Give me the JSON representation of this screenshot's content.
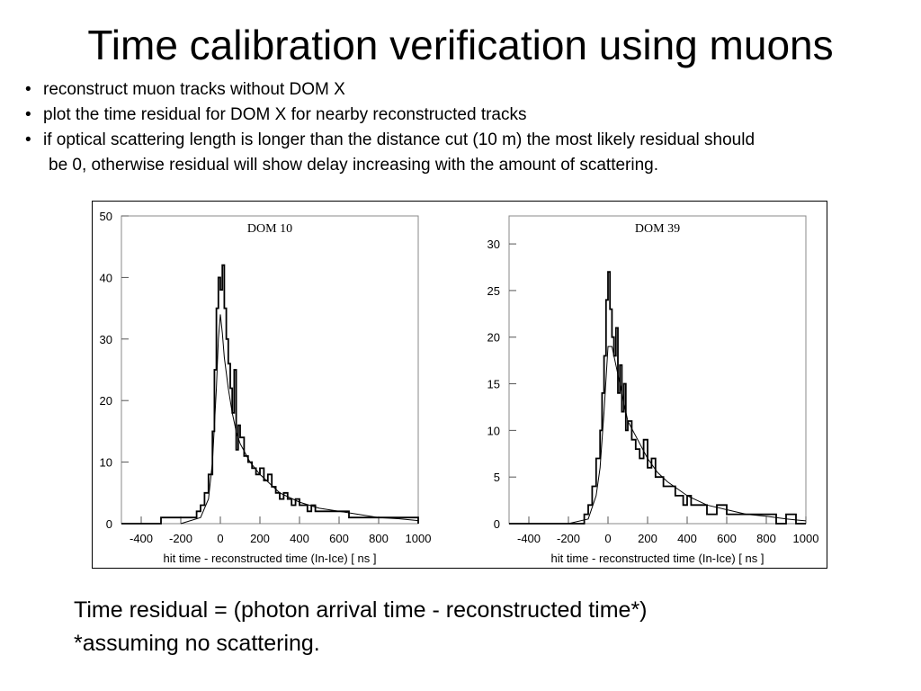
{
  "slide": {
    "title": "Time calibration verification using muons",
    "bullets": [
      "reconstruct muon tracks without DOM X",
      "plot the time residual for DOM X for nearby reconstructed tracks",
      "if optical scattering length is longer than the distance cut (10 m) the most likely residual should",
      "be 0, otherwise residual will show delay increasing with the amount of scattering."
    ],
    "bullet_glyph": "•",
    "footer": [
      "Time residual = (photon arrival time - reconstructed time*)",
      "*assuming no scattering."
    ]
  },
  "chart_data": [
    {
      "type": "line",
      "title": "DOM 10",
      "xlabel": "hit time - reconstructed time (In-Ice) [ ns ]",
      "ylabel": "",
      "xlim": [
        -500,
        1000
      ],
      "ylim": [
        0,
        50
      ],
      "xticks": [
        -400,
        -200,
        0,
        200,
        400,
        600,
        800,
        1000
      ],
      "yticks": [
        0,
        10,
        20,
        30,
        40,
        50
      ],
      "grid": false,
      "series": [
        {
          "style": "histogram",
          "x": [
            -500,
            -400,
            -300,
            -200,
            -150,
            -120,
            -100,
            -80,
            -60,
            -40,
            -30,
            -20,
            -10,
            0,
            10,
            20,
            30,
            40,
            50,
            60,
            70,
            80,
            90,
            100,
            120,
            140,
            160,
            180,
            200,
            220,
            240,
            260,
            280,
            300,
            320,
            340,
            360,
            380,
            400,
            420,
            440,
            460,
            480,
            500,
            550,
            600,
            650,
            700,
            750,
            800,
            850,
            900,
            950,
            1000
          ],
          "y": [
            0,
            0,
            1,
            1,
            1,
            2,
            3,
            5,
            8,
            15,
            25,
            35,
            40,
            38,
            42,
            35,
            30,
            26,
            22,
            18,
            25,
            12,
            16,
            14,
            11,
            10,
            9,
            8,
            9,
            7,
            8,
            6,
            5,
            4,
            5,
            4,
            3,
            4,
            3,
            3,
            2,
            3,
            2,
            2,
            2,
            2,
            1,
            1,
            1,
            1,
            1,
            1,
            1,
            0
          ]
        },
        {
          "style": "fit",
          "x": [
            -200,
            -100,
            -60,
            -40,
            -20,
            -10,
            0,
            10,
            20,
            40,
            60,
            80,
            100,
            150,
            200,
            250,
            300,
            400,
            500,
            600,
            700,
            800,
            900,
            1000
          ],
          "y": [
            0,
            1,
            4,
            10,
            22,
            30,
            34,
            31,
            27,
            22,
            18,
            15,
            13,
            10,
            8,
            6.5,
            5,
            3.5,
            2.5,
            2,
            1.5,
            1,
            0.8,
            0.5
          ]
        }
      ]
    },
    {
      "type": "line",
      "title": "DOM 39",
      "xlabel": "hit time - reconstructed time (In-Ice) [ ns ]",
      "ylabel": "",
      "xlim": [
        -500,
        1000
      ],
      "ylim": [
        0,
        33
      ],
      "xticks": [
        -400,
        -200,
        0,
        200,
        400,
        600,
        800,
        1000
      ],
      "yticks": [
        0,
        5,
        10,
        15,
        20,
        25,
        30
      ],
      "grid": false,
      "series": [
        {
          "style": "histogram",
          "x": [
            -500,
            -400,
            -300,
            -200,
            -150,
            -120,
            -100,
            -80,
            -60,
            -40,
            -30,
            -20,
            -10,
            0,
            10,
            20,
            30,
            40,
            50,
            60,
            70,
            80,
            90,
            100,
            120,
            140,
            160,
            180,
            200,
            220,
            240,
            260,
            280,
            300,
            320,
            340,
            360,
            380,
            400,
            420,
            440,
            460,
            480,
            500,
            550,
            600,
            650,
            700,
            750,
            800,
            850,
            900,
            950,
            1000
          ],
          "y": [
            0,
            0,
            0,
            0,
            0,
            1,
            2,
            4,
            7,
            10,
            14,
            18,
            24,
            27,
            23,
            20,
            18,
            21,
            14,
            17,
            12,
            15,
            10,
            11,
            9,
            8,
            7,
            9,
            6,
            7,
            5,
            5,
            4,
            4,
            4,
            3,
            3,
            2,
            3,
            2,
            2,
            2,
            2,
            1,
            2,
            1,
            1,
            1,
            1,
            1,
            0,
            1,
            0,
            0
          ]
        },
        {
          "style": "fit",
          "x": [
            -200,
            -100,
            -60,
            -40,
            -20,
            0,
            20,
            40,
            60,
            80,
            100,
            150,
            200,
            250,
            300,
            400,
            500,
            600,
            700,
            800,
            900,
            1000
          ],
          "y": [
            0,
            0.5,
            3,
            6,
            12,
            19,
            19,
            17,
            15,
            13,
            11,
            9,
            7,
            5.5,
            4.5,
            3,
            2,
            1.5,
            1,
            0.8,
            0.5,
            0.3
          ]
        }
      ]
    }
  ]
}
